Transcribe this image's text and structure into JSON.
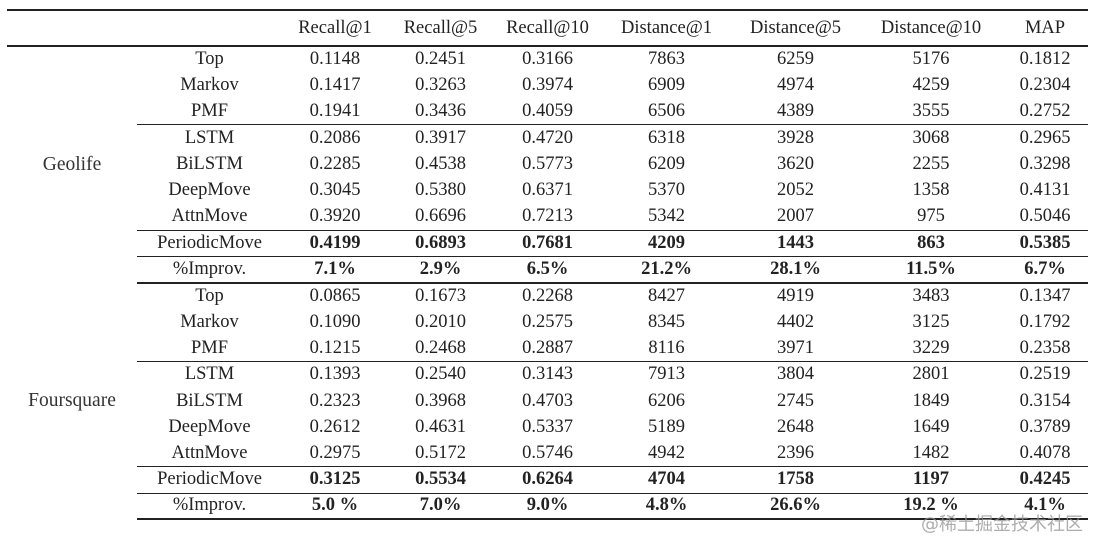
{
  "table": {
    "headers": [
      "",
      "",
      "Recall@1",
      "Recall@5",
      "Recall@10",
      "Distance@1",
      "Distance@5",
      "Distance@10",
      "MAP"
    ],
    "groups": [
      {
        "dataset": "Geolife",
        "rows": [
          {
            "method": "Top",
            "values": [
              "0.1148",
              "0.2451",
              "0.3166",
              "7863",
              "6259",
              "5176",
              "0.1812"
            ],
            "bold": false
          },
          {
            "method": "Markov",
            "values": [
              "0.1417",
              "0.3263",
              "0.3974",
              "6909",
              "4974",
              "4259",
              "0.2304"
            ],
            "bold": false
          },
          {
            "method": "PMF",
            "values": [
              "0.1941",
              "0.3436",
              "0.4059",
              "6506",
              "4389",
              "3555",
              "0.2752"
            ],
            "bold": false
          },
          {
            "method": "LSTM",
            "values": [
              "0.2086",
              "0.3917",
              "0.4720",
              "6318",
              "3928",
              "3068",
              "0.2965"
            ],
            "bold": false
          },
          {
            "method": "BiLSTM",
            "values": [
              "0.2285",
              "0.4538",
              "0.5773",
              "6209",
              "3620",
              "2255",
              "0.3298"
            ],
            "bold": false
          },
          {
            "method": "DeepMove",
            "values": [
              "0.3045",
              "0.5380",
              "0.6371",
              "5370",
              "2052",
              "1358",
              "0.4131"
            ],
            "bold": false
          },
          {
            "method": "AttnMove",
            "values": [
              "0.3920",
              "0.6696",
              "0.7213",
              "5342",
              "2007",
              "975",
              "0.5046"
            ],
            "bold": false
          },
          {
            "method": "PeriodicMove",
            "values": [
              "0.4199",
              "0.6893",
              "0.7681",
              "4209",
              "1443",
              "863",
              "0.5385"
            ],
            "bold": true
          },
          {
            "method": "%Improv.",
            "values": [
              "7.1%",
              "2.9%",
              "6.5%",
              "21.2%",
              "28.1%",
              "11.5%",
              "6.7%"
            ],
            "bold": true
          }
        ]
      },
      {
        "dataset": "Foursquare",
        "rows": [
          {
            "method": "Top",
            "values": [
              "0.0865",
              "0.1673",
              "0.2268",
              "8427",
              "4919",
              "3483",
              "0.1347"
            ],
            "bold": false
          },
          {
            "method": "Markov",
            "values": [
              "0.1090",
              "0.2010",
              "0.2575",
              "8345",
              "4402",
              "3125",
              "0.1792"
            ],
            "bold": false
          },
          {
            "method": "PMF",
            "values": [
              "0.1215",
              "0.2468",
              "0.2887",
              "8116",
              "3971",
              "3229",
              "0.2358"
            ],
            "bold": false
          },
          {
            "method": "LSTM",
            "values": [
              "0.1393",
              "0.2540",
              "0.3143",
              "7913",
              "3804",
              "2801",
              "0.2519"
            ],
            "bold": false
          },
          {
            "method": "BiLSTM",
            "values": [
              "0.2323",
              "0.3968",
              "0.4703",
              "6206",
              "2745",
              "1849",
              "0.3154"
            ],
            "bold": false
          },
          {
            "method": "DeepMove",
            "values": [
              "0.2612",
              "0.4631",
              "0.5337",
              "5189",
              "2648",
              "1649",
              "0.3789"
            ],
            "bold": false
          },
          {
            "method": "AttnMove",
            "values": [
              "0.2975",
              "0.5172",
              "0.5746",
              "4942",
              "2396",
              "1482",
              "0.4078"
            ],
            "bold": false
          },
          {
            "method": "PeriodicMove",
            "values": [
              "0.3125",
              "0.5534",
              "0.6264",
              "4704",
              "1758",
              "1197",
              "0.4245"
            ],
            "bold": true
          },
          {
            "method": "%Improv.",
            "values": [
              "5.0 %",
              "7.0%",
              "9.0%",
              "4.8%",
              "26.6%",
              "19.2 %",
              "4.1%"
            ],
            "bold": true
          }
        ]
      }
    ]
  },
  "watermark": "@稀土掘金技术社区"
}
